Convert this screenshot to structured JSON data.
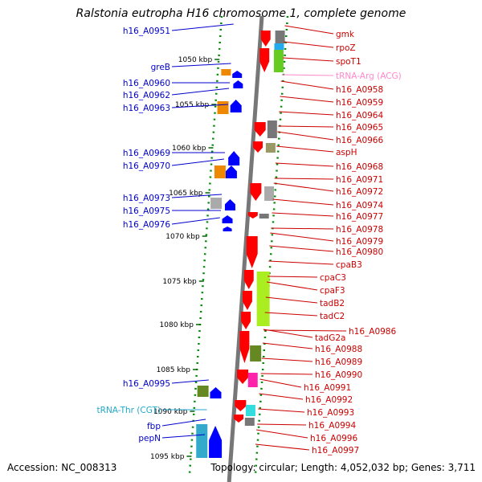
{
  "title": "Ralstonia eutropha H16 chromosome 1, complete genome",
  "footer": {
    "accession": "Accession: NC_008313",
    "summary": "Topology: circular; Length: 4,052,032 bp; Genes: 3,711"
  },
  "ticks": [
    "1050 kbp",
    "1055 kbp",
    "1060 kbp",
    "1065 kbp",
    "1070 kbp",
    "1075 kbp",
    "1080 kbp",
    "1085 kbp",
    "1090 kbp",
    "1095 kbp"
  ],
  "left_labels": [
    {
      "text": "h16_A0951",
      "color": "#0000cc"
    },
    {
      "text": "greB",
      "color": "#0000cc"
    },
    {
      "text": "h16_A0960",
      "color": "#0000cc"
    },
    {
      "text": "h16_A0962",
      "color": "#0000cc"
    },
    {
      "text": "h16_A0963",
      "color": "#0000cc"
    },
    {
      "text": "h16_A0969",
      "color": "#0000cc"
    },
    {
      "text": "h16_A0970",
      "color": "#0000cc"
    },
    {
      "text": "h16_A0973",
      "color": "#0000cc"
    },
    {
      "text": "h16_A0975",
      "color": "#0000cc"
    },
    {
      "text": "h16_A0976",
      "color": "#0000cc"
    },
    {
      "text": "h16_A0995",
      "color": "#0000cc"
    },
    {
      "text": "tRNA-Thr (CGT)",
      "color": "#22aacc"
    },
    {
      "text": "fbp",
      "color": "#0000cc"
    },
    {
      "text": "pepN",
      "color": "#0000cc"
    }
  ],
  "right_labels": [
    {
      "text": "gmk",
      "color": "#cc0000"
    },
    {
      "text": "rpoZ",
      "color": "#cc0000"
    },
    {
      "text": "spoT1",
      "color": "#cc0000"
    },
    {
      "text": "tRNA-Arg (ACG)",
      "color": "#ff88cc"
    },
    {
      "text": "h16_A0958",
      "color": "#cc0000"
    },
    {
      "text": "h16_A0959",
      "color": "#cc0000"
    },
    {
      "text": "h16_A0964",
      "color": "#cc0000"
    },
    {
      "text": "h16_A0965",
      "color": "#cc0000"
    },
    {
      "text": "h16_A0966",
      "color": "#cc0000"
    },
    {
      "text": "aspH",
      "color": "#cc0000"
    },
    {
      "text": "h16_A0968",
      "color": "#cc0000"
    },
    {
      "text": "h16_A0971",
      "color": "#cc0000"
    },
    {
      "text": "h16_A0972",
      "color": "#cc0000"
    },
    {
      "text": "h16_A0974",
      "color": "#cc0000"
    },
    {
      "text": "h16_A0977",
      "color": "#cc0000"
    },
    {
      "text": "h16_A0978",
      "color": "#cc0000"
    },
    {
      "text": "h16_A0979",
      "color": "#cc0000"
    },
    {
      "text": "h16_A0980",
      "color": "#cc0000"
    },
    {
      "text": "cpaB3",
      "color": "#cc0000"
    },
    {
      "text": "cpaC3",
      "color": "#cc0000"
    },
    {
      "text": "cpaF3",
      "color": "#cc0000"
    },
    {
      "text": "tadB2",
      "color": "#cc0000"
    },
    {
      "text": "tadC2",
      "color": "#cc0000"
    },
    {
      "text": "h16_A0986",
      "color": "#cc0000"
    },
    {
      "text": "tadG2a",
      "color": "#cc0000"
    },
    {
      "text": "h16_A0988",
      "color": "#cc0000"
    },
    {
      "text": "h16_A0989",
      "color": "#cc0000"
    },
    {
      "text": "h16_A0990",
      "color": "#cc0000"
    },
    {
      "text": "h16_A0991",
      "color": "#cc0000"
    },
    {
      "text": "h16_A0992",
      "color": "#cc0000"
    },
    {
      "text": "h16_A0993",
      "color": "#cc0000"
    },
    {
      "text": "h16_A0994",
      "color": "#cc0000"
    },
    {
      "text": "h16_A0996",
      "color": "#cc0000"
    },
    {
      "text": "h16_A0997",
      "color": "#cc0000"
    }
  ],
  "colors": {
    "forward_strand": "#0000ff",
    "reverse_strand": "#ff0000",
    "backbone": "#777777",
    "guide_dots": "#008800"
  }
}
